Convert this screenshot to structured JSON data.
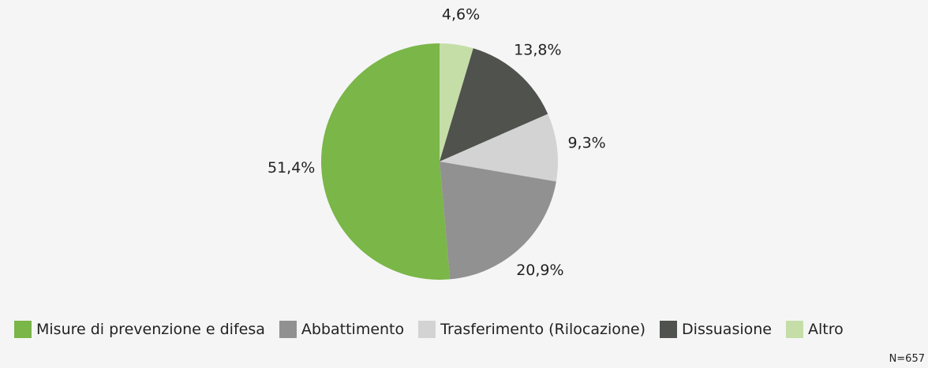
{
  "chart_data": {
    "type": "pie",
    "categories": [
      "Misure di prevenzione e difesa",
      "Abbattimento",
      "Trasferimento (Rilocazione)",
      "Dissuasione",
      "Altro"
    ],
    "values": [
      51.4,
      20.9,
      9.3,
      13.8,
      4.6
    ],
    "value_labels": [
      "51,4%",
      "20,9%",
      "9,3%",
      "13,8%",
      "4,6%"
    ],
    "colors": [
      "#7ab648",
      "#919191",
      "#d3d3d3",
      "#50524d",
      "#c5dea8"
    ],
    "note": "N=657"
  }
}
